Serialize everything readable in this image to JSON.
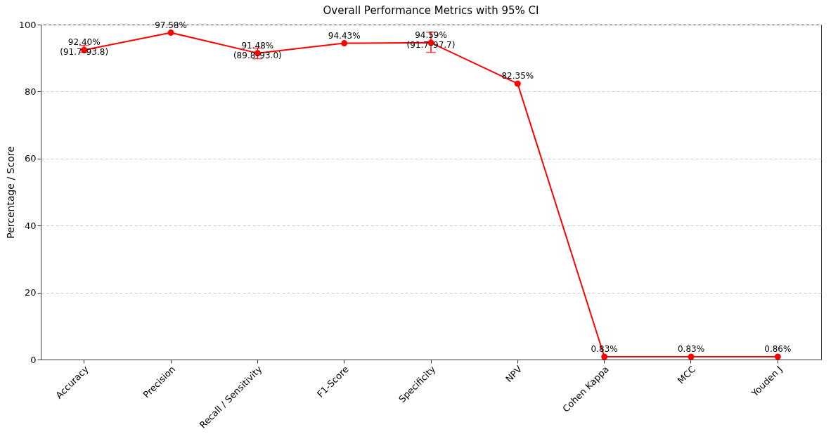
{
  "chart_data": {
    "type": "line",
    "title": "Overall Performance Metrics with 95% CI",
    "ylabel": "Percentage / Score",
    "categories": [
      "Accuracy",
      "Precision",
      "Recall / Sensitivity",
      "F1-Score",
      "Specificity",
      "NPV",
      "Cohen Kappa",
      "MCC",
      "Youden J"
    ],
    "series": [
      {
        "color": "#ff0000",
        "values": [
          92.4,
          97.58,
          91.48,
          94.43,
          94.59,
          82.35,
          0.83,
          0.83,
          0.86
        ],
        "errors": [
          [
            91.7,
            93.8
          ],
          null,
          [
            89.8,
            93.0
          ],
          null,
          [
            91.7,
            97.7
          ],
          null,
          null,
          null,
          null
        ],
        "value_labels": [
          "92.40%\n(91.7–93.8)",
          "97.58%",
          "91.48%\n(89.8–93.0)",
          "94.43%",
          "94.59%\n(91.7–97.7)",
          "82.35%",
          "0.83%",
          "0.83%",
          "0.86%"
        ]
      }
    ],
    "ylim": [
      0,
      100
    ],
    "yticks": [
      0,
      20,
      40,
      60,
      80,
      100
    ],
    "grid": "y",
    "marker": "circle",
    "line_style": "solid"
  }
}
